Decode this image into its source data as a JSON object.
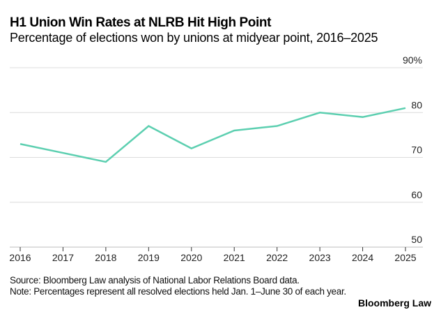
{
  "chart_data": {
    "type": "line",
    "title": "H1 Union Win Rates at NLRB Hit High Point",
    "subtitle": "Percentage of elections won by unions at midyear point, 2016–2025",
    "xlabel": "",
    "ylabel": "",
    "x": [
      "2016",
      "2017",
      "2018",
      "2019",
      "2020",
      "2021",
      "2022",
      "2023",
      "2024",
      "2025"
    ],
    "series": [
      {
        "name": "Union win rate",
        "values": [
          73,
          71,
          69,
          77,
          72,
          76,
          77,
          80,
          79,
          81
        ],
        "color": "#5ccfb0"
      }
    ],
    "ylim": [
      50,
      90
    ],
    "yticks": [
      {
        "value": 90,
        "label": "90%"
      },
      {
        "value": 80,
        "label": "80"
      },
      {
        "value": 70,
        "label": "70"
      },
      {
        "value": 60,
        "label": "60"
      },
      {
        "value": 50,
        "label": "50"
      }
    ],
    "grid": true,
    "legend": "none"
  },
  "footer": {
    "source": "Source: Bloomberg Law analysis of National Labor Relations Board data.",
    "note": "Note: Percentages represent all resolved elections held Jan. 1–June 30 of each year.",
    "brand": "Bloomberg Law"
  }
}
